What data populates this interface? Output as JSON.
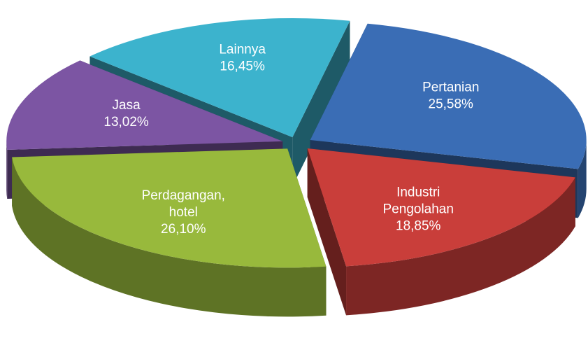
{
  "chart_data": {
    "type": "pie3d",
    "categories": [
      "Pertanian",
      "Industri Pengolahan",
      "Perdagangan, hotel",
      "Jasa",
      "Lainnya"
    ],
    "values": [
      25.58,
      18.85,
      26.1,
      13.02,
      16.45
    ],
    "value_labels": [
      "25,58%",
      "18,85%",
      "26,10%",
      "13,02%",
      "16,45%"
    ],
    "colors": [
      "#3a6db5",
      "#c93e3a",
      "#98b93c",
      "#7c55a3",
      "#3cb3cd"
    ]
  }
}
